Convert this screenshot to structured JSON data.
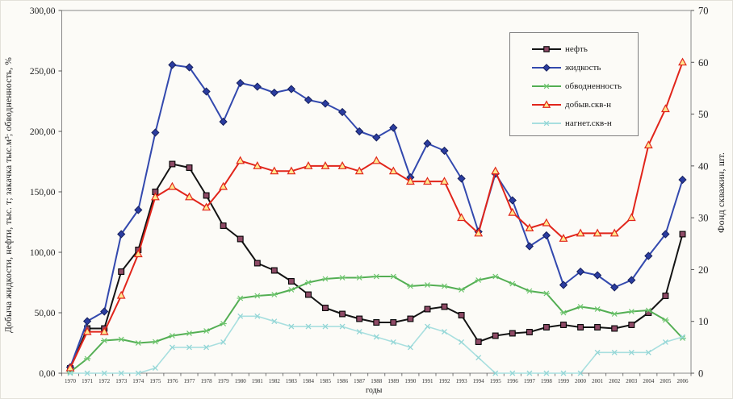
{
  "chart_data": {
    "type": "line",
    "title": "",
    "xlabel": "годы",
    "ylabel_left": "Добыча жидкости, нефти, тыс. т; закачка тыс.м³; обводненность, %",
    "ylabel_right": "Фонд скважин, шт.",
    "grid": false,
    "legend_position": "top-right-inside",
    "x": [
      1970,
      1971,
      1972,
      1973,
      1974,
      1975,
      1976,
      1977,
      1978,
      1979,
      1980,
      1981,
      1982,
      1983,
      1984,
      1985,
      1986,
      1987,
      1988,
      1989,
      1990,
      1991,
      1992,
      1993,
      1994,
      1995,
      1996,
      1997,
      1998,
      1999,
      2000,
      2001,
      2002,
      2003,
      2004,
      2005,
      2006
    ],
    "y_left_axis": {
      "min": 0,
      "max": 300,
      "step": 50,
      "tick_labels": [
        "0,00",
        "50,00",
        "100,00",
        "150,00",
        "200,00",
        "250,00",
        "300,00"
      ]
    },
    "y_right_axis": {
      "min": 0,
      "max": 70,
      "step": 10,
      "tick_labels": [
        "0",
        "10",
        "20",
        "30",
        "40",
        "50",
        "60",
        "70"
      ]
    },
    "series": [
      {
        "key": "neft",
        "name": "нефть",
        "axis": "left",
        "marker": "square",
        "color": "#141414",
        "marker_fill": "#8e4a66",
        "marker_edge": "#000000",
        "values": [
          4,
          37,
          37,
          84,
          102,
          150,
          173,
          170,
          147,
          122,
          111,
          91,
          85,
          76,
          65,
          54,
          49,
          45,
          42,
          42,
          45,
          53,
          55,
          48,
          26,
          31,
          33,
          34,
          38,
          40,
          38,
          38,
          37,
          40,
          50,
          64,
          115
        ]
      },
      {
        "key": "zhidkost",
        "name": "жидкость",
        "axis": "left",
        "marker": "diamond",
        "color": "#3349ae",
        "marker_fill": "#2b3da0",
        "marker_edge": "#16205e",
        "values": [
          5,
          43,
          51,
          115,
          135,
          199,
          255,
          253,
          233,
          208,
          240,
          237,
          232,
          235,
          226,
          223,
          216,
          200,
          195,
          203,
          162,
          190,
          184,
          161,
          117,
          165,
          143,
          105,
          114,
          73,
          84,
          81,
          71,
          77,
          97,
          115,
          160
        ]
      },
      {
        "key": "obvodnennost",
        "name": "обводненность",
        "axis": "left",
        "marker": "star",
        "color": "#53ae53",
        "marker_fill": "#6cc46c",
        "marker_edge": "#53ae53",
        "values": [
          1,
          12,
          27,
          28,
          25,
          26,
          31,
          33,
          35,
          41,
          62,
          64,
          65,
          69,
          75,
          78,
          79,
          79,
          80,
          80,
          72,
          73,
          72,
          69,
          77,
          80,
          74,
          68,
          66,
          50,
          55,
          53,
          49,
          51,
          52,
          44,
          29
        ]
      },
      {
        "key": "dobyv-skv-n",
        "name": "добыв.скв-н",
        "axis": "right",
        "marker": "triangle",
        "color": "#e1251b",
        "marker_fill": "#ffe98f",
        "marker_edge": "#e1251b",
        "values": [
          1,
          8,
          8,
          15,
          23,
          34,
          36,
          34,
          32,
          36,
          41,
          40,
          39,
          39,
          40,
          40,
          40,
          39,
          41,
          39,
          37,
          37,
          37,
          30,
          27,
          39,
          31,
          28,
          29,
          26,
          27,
          27,
          27,
          30,
          44,
          51,
          60
        ]
      },
      {
        "key": "nagnet-skv-n",
        "name": "нагнет.скв-н",
        "axis": "right",
        "marker": "x",
        "color": "#a8dfdf",
        "marker_fill": "#93d6d6",
        "marker_edge": "#93d6d6",
        "values": [
          0,
          0,
          0,
          0,
          0,
          1,
          5,
          5,
          5,
          6,
          11,
          11,
          10,
          9,
          9,
          9,
          9,
          8,
          7,
          6,
          5,
          9,
          8,
          6,
          3,
          0,
          0,
          0,
          0,
          0,
          0,
          4,
          4,
          4,
          4,
          6,
          7
        ]
      }
    ],
    "plot_border_color": "#888888",
    "axis_text_color": "#222222"
  }
}
